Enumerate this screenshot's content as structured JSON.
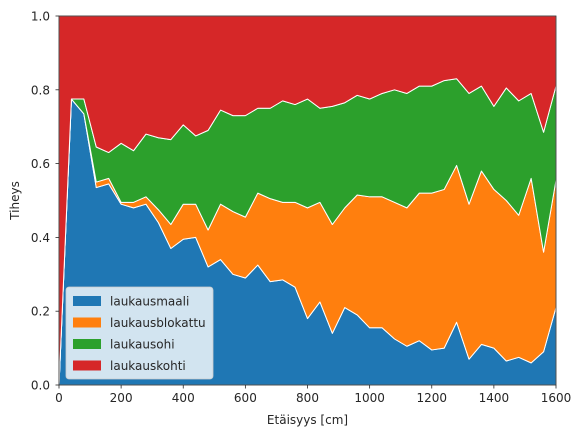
{
  "chart_data": {
    "type": "area",
    "stacked": true,
    "normalized": true,
    "xlabel": "Etäisyys [cm]",
    "ylabel": "Tiheys",
    "xlim": [
      0,
      1600
    ],
    "ylim": [
      0,
      1.0
    ],
    "xticks": [
      "0",
      "200",
      "400",
      "600",
      "800",
      "1000",
      "1200",
      "1400",
      "1600"
    ],
    "yticks": [
      "0.0",
      "0.2",
      "0.4",
      "0.6",
      "0.8",
      "1.0"
    ],
    "grid": false,
    "legend_position": "lower-left",
    "x": [
      0,
      40,
      80,
      120,
      160,
      200,
      240,
      280,
      320,
      360,
      400,
      440,
      480,
      520,
      560,
      600,
      640,
      680,
      720,
      760,
      800,
      840,
      880,
      920,
      960,
      1000,
      1040,
      1080,
      1120,
      1160,
      1200,
      1240,
      1280,
      1320,
      1360,
      1400,
      1440,
      1480,
      1520,
      1560,
      1600
    ],
    "series": [
      {
        "name": "laukausmaali",
        "color": "#1f77b4",
        "values": [
          0.0,
          0.775,
          0.735,
          0.535,
          0.545,
          0.49,
          0.48,
          0.49,
          0.44,
          0.37,
          0.395,
          0.4,
          0.32,
          0.34,
          0.3,
          0.29,
          0.325,
          0.28,
          0.285,
          0.265,
          0.18,
          0.225,
          0.14,
          0.21,
          0.19,
          0.155,
          0.155,
          0.125,
          0.105,
          0.12,
          0.095,
          0.1,
          0.17,
          0.07,
          0.11,
          0.1,
          0.065,
          0.075,
          0.06,
          0.09,
          0.21
        ]
      },
      {
        "name": "laukausblokattu",
        "color": "#ff7f0e",
        "values": [
          0.0,
          0.0,
          0.0,
          0.015,
          0.015,
          0.005,
          0.015,
          0.02,
          0.035,
          0.065,
          0.095,
          0.09,
          0.1,
          0.15,
          0.17,
          0.165,
          0.195,
          0.225,
          0.21,
          0.23,
          0.3,
          0.27,
          0.295,
          0.27,
          0.325,
          0.355,
          0.355,
          0.37,
          0.375,
          0.4,
          0.425,
          0.43,
          0.425,
          0.42,
          0.47,
          0.43,
          0.435,
          0.385,
          0.5,
          0.27,
          0.345
        ]
      },
      {
        "name": "laukausohi",
        "color": "#2ca02c",
        "values": [
          0.0,
          0.0,
          0.04,
          0.095,
          0.07,
          0.16,
          0.14,
          0.17,
          0.195,
          0.23,
          0.215,
          0.185,
          0.27,
          0.255,
          0.26,
          0.275,
          0.23,
          0.245,
          0.275,
          0.265,
          0.295,
          0.255,
          0.32,
          0.285,
          0.27,
          0.265,
          0.28,
          0.305,
          0.31,
          0.29,
          0.29,
          0.295,
          0.235,
          0.3,
          0.23,
          0.225,
          0.305,
          0.31,
          0.23,
          0.325,
          0.255
        ]
      },
      {
        "name": "laukauskohti",
        "color": "#d62728",
        "values": [
          1.0,
          0.225,
          0.225,
          0.355,
          0.37,
          0.345,
          0.365,
          0.32,
          0.33,
          0.335,
          0.295,
          0.325,
          0.31,
          0.255,
          0.27,
          0.27,
          0.25,
          0.25,
          0.23,
          0.24,
          0.225,
          0.25,
          0.245,
          0.235,
          0.215,
          0.225,
          0.21,
          0.2,
          0.21,
          0.19,
          0.19,
          0.175,
          0.17,
          0.21,
          0.19,
          0.245,
          0.195,
          0.23,
          0.21,
          0.315,
          0.19
        ]
      }
    ]
  }
}
